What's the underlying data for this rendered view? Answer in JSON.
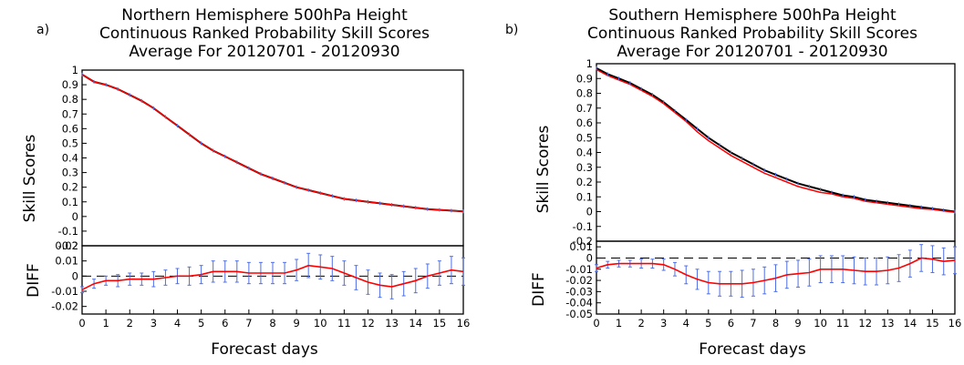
{
  "chart_data": [
    {
      "panel_label": "a)",
      "type": "line",
      "title_lines": [
        "Northern Hemisphere 500hPa Height",
        "Continuous Ranked Probability Skill Scores",
        "Average For 20120701 - 20120930"
      ],
      "xlabel": "Forecast days",
      "xlim": [
        0,
        16
      ],
      "x_ticks": [
        "0",
        "1",
        "2",
        "3",
        "4",
        "5",
        "6",
        "7",
        "8",
        "9",
        "10",
        "11",
        "12",
        "13",
        "14",
        "15",
        "16"
      ],
      "top": {
        "ylabel": "Skill Scores",
        "ylim": [
          -0.2,
          1
        ],
        "y_ticks": [
          "1",
          "0.9",
          "0.8",
          "0.7",
          "0.6",
          "0.5",
          "0.4",
          "0.3",
          "0.2",
          "0.1",
          "0",
          "-0.1",
          "-0.2"
        ],
        "x": [
          0,
          0.5,
          1,
          1.5,
          2,
          2.5,
          3,
          3.5,
          4,
          4.5,
          5,
          5.5,
          6,
          6.5,
          7,
          7.5,
          8,
          8.5,
          9,
          9.5,
          10,
          10.5,
          11,
          11.5,
          12,
          12.5,
          13,
          13.5,
          14,
          14.5,
          15,
          15.5,
          16
        ],
        "series": [
          {
            "color": "#000000",
            "values": [
              0.97,
              0.92,
              0.9,
              0.87,
              0.83,
              0.79,
              0.74,
              0.68,
              0.62,
              0.56,
              0.5,
              0.45,
              0.41,
              0.37,
              0.33,
              0.29,
              0.26,
              0.23,
              0.2,
              0.18,
              0.16,
              0.14,
              0.12,
              0.11,
              0.1,
              0.09,
              0.08,
              0.07,
              0.06,
              0.05,
              0.045,
              0.04,
              0.035
            ]
          },
          {
            "color": "#ff0000",
            "values": [
              0.97,
              0.92,
              0.9,
              0.87,
              0.83,
              0.79,
              0.74,
              0.68,
              0.62,
              0.56,
              0.5,
              0.45,
              0.41,
              0.37,
              0.33,
              0.29,
              0.26,
              0.23,
              0.2,
              0.18,
              0.16,
              0.14,
              0.12,
              0.11,
              0.1,
              0.09,
              0.08,
              0.07,
              0.06,
              0.05,
              0.045,
              0.04,
              0.035
            ]
          }
        ]
      },
      "bottom": {
        "ylabel": "DIFF",
        "ylim": [
          -0.025,
          0.02
        ],
        "y_ticks": [
          "0.02",
          "0.01",
          "0",
          "-0.01",
          "-0.02"
        ],
        "x": [
          0,
          0.5,
          1,
          1.5,
          2,
          2.5,
          3,
          3.5,
          4,
          4.5,
          5,
          5.5,
          6,
          6.5,
          7,
          7.5,
          8,
          8.5,
          9,
          9.5,
          10,
          10.5,
          11,
          11.5,
          12,
          12.5,
          13,
          13.5,
          14,
          14.5,
          15,
          15.5,
          16
        ],
        "values": [
          -0.009,
          -0.005,
          -0.003,
          -0.003,
          -0.002,
          -0.002,
          -0.002,
          -0.001,
          0,
          0,
          0.001,
          0.003,
          0.003,
          0.003,
          0.002,
          0.002,
          0.002,
          0.002,
          0.004,
          0.007,
          0.006,
          0.005,
          0.002,
          -0.001,
          -0.004,
          -0.006,
          -0.007,
          -0.005,
          -0.003,
          0,
          0.002,
          0.004,
          0.003
        ],
        "error": [
          0.002,
          0.003,
          0.003,
          0.004,
          0.004,
          0.004,
          0.005,
          0.005,
          0.005,
          0.006,
          0.006,
          0.007,
          0.007,
          0.007,
          0.007,
          0.007,
          0.007,
          0.007,
          0.007,
          0.008,
          0.008,
          0.008,
          0.008,
          0.008,
          0.008,
          0.008,
          0.008,
          0.008,
          0.008,
          0.008,
          0.008,
          0.009,
          0.009
        ],
        "line_color": "#ff0000",
        "errorbar_color": "#4f6fe8"
      }
    },
    {
      "panel_label": "b)",
      "type": "line",
      "title_lines": [
        "Southern Hemisphere 500hPa Height",
        "Continuous Ranked Probability Skill Scores",
        "Average For 20120701 - 20120930"
      ],
      "xlabel": "Forecast days",
      "xlim": [
        0,
        16
      ],
      "x_ticks": [
        "0",
        "1",
        "2",
        "3",
        "4",
        "5",
        "6",
        "7",
        "8",
        "9",
        "10",
        "11",
        "12",
        "13",
        "14",
        "15",
        "16"
      ],
      "top": {
        "ylabel": "Skill Scores",
        "ylim": [
          -0.2,
          1
        ],
        "y_ticks": [
          "1",
          "0.9",
          "0.8",
          "0.7",
          "0.6",
          "0.5",
          "0.4",
          "0.3",
          "0.2",
          "0.1",
          "0",
          "-0.1",
          "-0.2"
        ],
        "x": [
          0,
          0.5,
          1,
          1.5,
          2,
          2.5,
          3,
          3.5,
          4,
          4.5,
          5,
          5.5,
          6,
          6.5,
          7,
          7.5,
          8,
          8.5,
          9,
          9.5,
          10,
          10.5,
          11,
          11.5,
          12,
          12.5,
          13,
          13.5,
          14,
          14.5,
          15,
          15.5,
          16
        ],
        "series": [
          {
            "color": "#000000",
            "values": [
              0.97,
              0.93,
              0.9,
              0.87,
              0.83,
              0.79,
              0.74,
              0.68,
              0.62,
              0.56,
              0.5,
              0.45,
              0.4,
              0.36,
              0.32,
              0.28,
              0.25,
              0.22,
              0.19,
              0.17,
              0.15,
              0.13,
              0.11,
              0.1,
              0.08,
              0.07,
              0.06,
              0.05,
              0.04,
              0.03,
              0.02,
              0.01,
              0.0
            ]
          },
          {
            "color": "#ff0000",
            "values": [
              0.96,
              0.92,
              0.89,
              0.86,
              0.82,
              0.78,
              0.73,
              0.67,
              0.61,
              0.54,
              0.48,
              0.43,
              0.38,
              0.34,
              0.3,
              0.26,
              0.23,
              0.2,
              0.17,
              0.15,
              0.13,
              0.12,
              0.1,
              0.09,
              0.07,
              0.06,
              0.05,
              0.04,
              0.03,
              0.02,
              0.015,
              0.005,
              -0.005
            ]
          }
        ]
      },
      "bottom": {
        "ylabel": "DIFF",
        "ylim": [
          -0.05,
          0.015
        ],
        "y_ticks": [
          "0.01",
          "0",
          "-0.01",
          "-0.02",
          "-0.03",
          "-0.04",
          "-0.05"
        ],
        "x": [
          0,
          0.5,
          1,
          1.5,
          2,
          2.5,
          3,
          3.5,
          4,
          4.5,
          5,
          5.5,
          6,
          6.5,
          7,
          7.5,
          8,
          8.5,
          9,
          9.5,
          10,
          10.5,
          11,
          11.5,
          12,
          12.5,
          13,
          13.5,
          14,
          14.5,
          15,
          15.5,
          16
        ],
        "values": [
          -0.009,
          -0.006,
          -0.005,
          -0.005,
          -0.005,
          -0.005,
          -0.006,
          -0.01,
          -0.015,
          -0.019,
          -0.022,
          -0.023,
          -0.023,
          -0.023,
          -0.022,
          -0.02,
          -0.018,
          -0.015,
          -0.014,
          -0.013,
          -0.01,
          -0.01,
          -0.01,
          -0.011,
          -0.012,
          -0.012,
          -0.011,
          -0.009,
          -0.005,
          0,
          -0.001,
          -0.003,
          -0.002
        ],
        "error": [
          0.003,
          0.003,
          0.003,
          0.003,
          0.004,
          0.004,
          0.005,
          0.006,
          0.008,
          0.009,
          0.01,
          0.011,
          0.011,
          0.012,
          0.012,
          0.012,
          0.012,
          0.012,
          0.012,
          0.012,
          0.012,
          0.012,
          0.012,
          0.012,
          0.012,
          0.012,
          0.012,
          0.012,
          0.012,
          0.012,
          0.012,
          0.012,
          0.012
        ],
        "line_color": "#ff0000",
        "errorbar_color": "#4f6fe8"
      }
    }
  ]
}
